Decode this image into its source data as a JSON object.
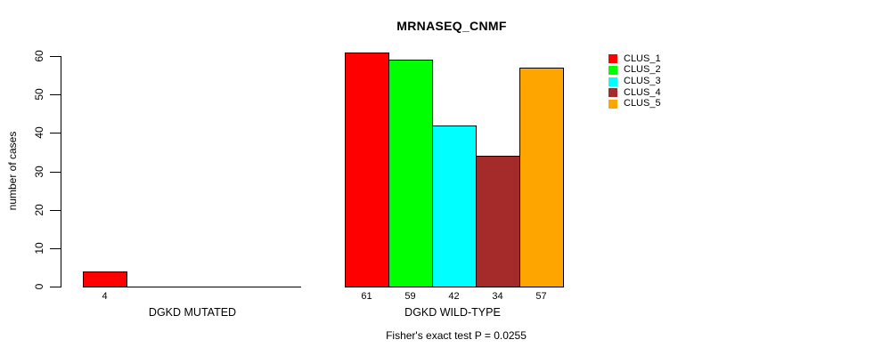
{
  "title": "MRNASEQ_CNMF",
  "chart_data": {
    "type": "bar",
    "title": "MRNASEQ_CNMF",
    "xlabel": "",
    "ylabel": "number of cases",
    "ylim": [
      0,
      60
    ],
    "yticks": [
      0,
      10,
      20,
      30,
      40,
      50,
      60
    ],
    "grid": false,
    "legend_position": "right",
    "categories": [
      "DGKD MUTATED",
      "DGKD WILD-TYPE"
    ],
    "series": [
      {
        "name": "CLUS_1",
        "color": "#ff0000",
        "values": [
          4,
          61
        ]
      },
      {
        "name": "CLUS_2",
        "color": "#00ff00",
        "values": [
          0,
          59
        ]
      },
      {
        "name": "CLUS_3",
        "color": "#00ffff",
        "values": [
          0,
          42
        ]
      },
      {
        "name": "CLUS_4",
        "color": "#a52a2a",
        "values": [
          0,
          34
        ]
      },
      {
        "name": "CLUS_5",
        "color": "#ffa500",
        "values": [
          0,
          57
        ]
      }
    ],
    "bar_value_labels_shown": [
      "4",
      "61",
      "59",
      "42",
      "34",
      "57"
    ],
    "annotation": "Fisher's exact test P = 0.0255"
  },
  "colors": {
    "axis": "#000000",
    "text": "#000000",
    "background": "#ffffff"
  }
}
